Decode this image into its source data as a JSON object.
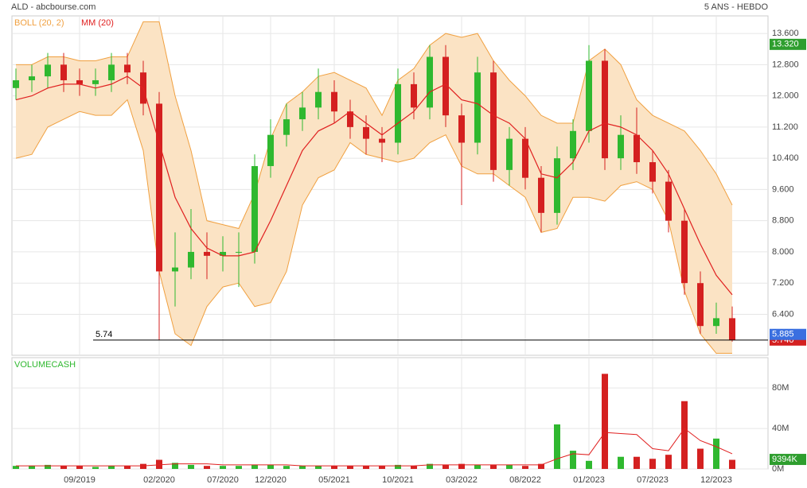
{
  "header": {
    "title": "ALD - abcbourse.com",
    "period": "5 ANS - HEBDO"
  },
  "chart_data": [
    {
      "type": "candlestick",
      "categories": [
        null,
        null,
        null,
        null,
        "09/2019",
        null,
        null,
        null,
        null,
        "02/2020",
        null,
        null,
        null,
        "07/2020",
        null,
        null,
        "12/2020",
        null,
        null,
        null,
        "05/2021",
        null,
        null,
        null,
        "10/2021",
        null,
        null,
        null,
        "03/2022",
        null,
        null,
        null,
        "08/2022",
        null,
        null,
        null,
        "01/2023",
        null,
        null,
        null,
        "07/2023",
        null,
        null,
        null,
        "12/2023",
        null
      ],
      "open": [
        12.2,
        12.4,
        12.5,
        12.8,
        12.4,
        12.3,
        12.4,
        12.8,
        12.6,
        11.8,
        7.5,
        7.6,
        8.0,
        7.9,
        8.0,
        8.0,
        10.2,
        11.0,
        11.4,
        11.7,
        12.1,
        11.6,
        11.2,
        10.9,
        10.8,
        12.3,
        11.7,
        13.0,
        11.5,
        10.8,
        12.6,
        10.1,
        10.9,
        9.9,
        9.0,
        10.4,
        11.1,
        12.9,
        10.4,
        11.0,
        10.3,
        9.8,
        8.8,
        7.2,
        6.1,
        6.3
      ],
      "high": [
        12.7,
        12.8,
        13.1,
        13.1,
        12.7,
        12.7,
        13.1,
        13.1,
        12.9,
        12.1,
        8.5,
        9.1,
        8.5,
        8.4,
        8.5,
        10.5,
        11.4,
        11.8,
        12.1,
        12.7,
        12.4,
        11.9,
        11.5,
        11.2,
        12.7,
        12.6,
        13.3,
        13.3,
        11.8,
        13.0,
        12.9,
        11.2,
        11.2,
        10.2,
        10.7,
        11.4,
        13.3,
        13.2,
        11.5,
        11.7,
        10.6,
        10.1,
        9.1,
        7.5,
        6.7,
        6.6
      ],
      "low": [
        11.9,
        12.1,
        12.2,
        12.1,
        12.0,
        12.0,
        12.1,
        12.3,
        11.5,
        5.74,
        6.6,
        7.3,
        7.3,
        7.5,
        7.1,
        7.7,
        9.9,
        10.7,
        11.1,
        11.4,
        11.3,
        10.9,
        10.5,
        10.3,
        10.5,
        11.4,
        11.4,
        11.2,
        9.2,
        10.5,
        9.8,
        9.7,
        9.6,
        8.5,
        8.7,
        10.1,
        10.8,
        10.1,
        10.1,
        10.0,
        9.5,
        8.5,
        6.9,
        5.9,
        5.9,
        5.7
      ],
      "close": [
        12.4,
        12.5,
        12.8,
        12.4,
        12.3,
        12.4,
        12.8,
        12.6,
        11.8,
        7.5,
        7.6,
        8.0,
        7.9,
        8.0,
        8.0,
        10.2,
        11.0,
        11.4,
        11.7,
        12.1,
        11.6,
        11.2,
        10.9,
        10.8,
        12.3,
        11.7,
        13.0,
        11.5,
        10.8,
        12.6,
        10.1,
        10.9,
        9.9,
        9.0,
        10.4,
        11.1,
        12.9,
        10.4,
        11.0,
        10.3,
        9.8,
        8.8,
        7.2,
        6.1,
        6.3,
        5.74
      ],
      "up_color": "#2fb82f",
      "down_color": "#d42020",
      "bands": {
        "name": "BOLL (20, 2)",
        "color": "#f0a040",
        "fill": "#fbe3c4",
        "upper": [
          12.8,
          12.8,
          13.0,
          13.0,
          12.9,
          12.9,
          13.0,
          13.0,
          13.9,
          13.9,
          12.0,
          10.6,
          8.8,
          8.7,
          8.6,
          9.5,
          10.9,
          11.8,
          12.1,
          12.5,
          12.6,
          12.4,
          12.2,
          11.5,
          12.4,
          12.7,
          13.3,
          13.6,
          13.5,
          13.6,
          12.9,
          12.4,
          12.0,
          11.5,
          11.3,
          11.3,
          12.9,
          13.2,
          12.8,
          11.9,
          11.5,
          11.3,
          11.1,
          10.6,
          10.0,
          9.2
        ],
        "lower": [
          10.4,
          10.5,
          11.2,
          11.4,
          11.6,
          11.5,
          11.5,
          11.9,
          10.6,
          7.5,
          5.9,
          5.6,
          6.6,
          7.1,
          7.2,
          6.6,
          6.7,
          7.5,
          9.2,
          9.9,
          10.1,
          10.8,
          10.5,
          10.4,
          10.3,
          10.4,
          10.8,
          11.0,
          10.2,
          10.0,
          10.0,
          9.7,
          9.4,
          8.5,
          8.6,
          9.4,
          9.4,
          9.3,
          9.7,
          9.8,
          9.6,
          8.8,
          7.0,
          5.9,
          5.4,
          5.4
        ]
      },
      "series": [
        {
          "name": "MM (20)",
          "color": "#e02020",
          "values": [
            11.9,
            12.0,
            12.2,
            12.3,
            12.3,
            12.2,
            12.3,
            12.5,
            12.2,
            10.8,
            9.4,
            8.6,
            8.1,
            7.9,
            7.9,
            8.0,
            8.8,
            9.7,
            10.6,
            11.1,
            11.3,
            11.6,
            11.3,
            11.0,
            11.3,
            11.6,
            12.1,
            12.3,
            11.9,
            11.8,
            11.5,
            11.3,
            10.9,
            10.0,
            9.9,
            10.3,
            11.1,
            11.3,
            11.2,
            11.0,
            10.6,
            10.0,
            9.1,
            8.2,
            7.4,
            6.9
          ]
        }
      ],
      "ylim": [
        5.35,
        14.05
      ],
      "yticks": [
        {
          "value": 13.6,
          "label": "13.600"
        },
        {
          "value": 12.8,
          "label": "12.800"
        },
        {
          "value": 12.0,
          "label": "12.000"
        },
        {
          "value": 11.2,
          "label": "11.200"
        },
        {
          "value": 10.4,
          "label": "10.400"
        },
        {
          "value": 9.6,
          "label": "9.600"
        },
        {
          "value": 8.8,
          "label": "8.800"
        },
        {
          "value": 8.0,
          "label": "8.000"
        },
        {
          "value": 7.2,
          "label": "7.200"
        },
        {
          "value": 6.4,
          "label": "6.400"
        }
      ],
      "reference_line": {
        "value": 5.74,
        "label": "5.74"
      },
      "price_tags": [
        {
          "value": 5.74,
          "label": "5.740",
          "color": "#d42020"
        },
        {
          "value": 5.885,
          "label": "5.885",
          "color": "#3a6fe0"
        },
        {
          "value": 13.32,
          "label": "13.320",
          "color": "#2e9e2e"
        }
      ],
      "grid": true
    },
    {
      "type": "volume",
      "title": "VOLUMECASH",
      "values": [
        3,
        3,
        4,
        3,
        3,
        2,
        3,
        3,
        5,
        9,
        6,
        4,
        3,
        3,
        3,
        4,
        4,
        3,
        3,
        3,
        3,
        3,
        3,
        3,
        4,
        3,
        5,
        4,
        5,
        4,
        4,
        4,
        3,
        5,
        44,
        18,
        8,
        94,
        12,
        12,
        10,
        14,
        67,
        20,
        30,
        9
      ],
      "series": [
        {
          "name": "MM",
          "color": "#e02020",
          "values": [
            3,
            3,
            3,
            3,
            3,
            3,
            3,
            3,
            3,
            4,
            5,
            5,
            5,
            4,
            4,
            4,
            4,
            4,
            3,
            3,
            3,
            3,
            3,
            3,
            3,
            3,
            4,
            4,
            4,
            4,
            4,
            4,
            4,
            4,
            10,
            15,
            14,
            36,
            35,
            34,
            20,
            18,
            40,
            28,
            22,
            15
          ]
        }
      ],
      "ylim": [
        0,
        110
      ],
      "yticks": [
        {
          "value": 80,
          "label": "80M"
        },
        {
          "value": 40,
          "label": "40M"
        },
        {
          "value": 0,
          "label": "0M"
        }
      ],
      "tag": {
        "value": 9.394,
        "label": "9394K",
        "color": "#2e9e2e"
      },
      "grid": true
    }
  ]
}
